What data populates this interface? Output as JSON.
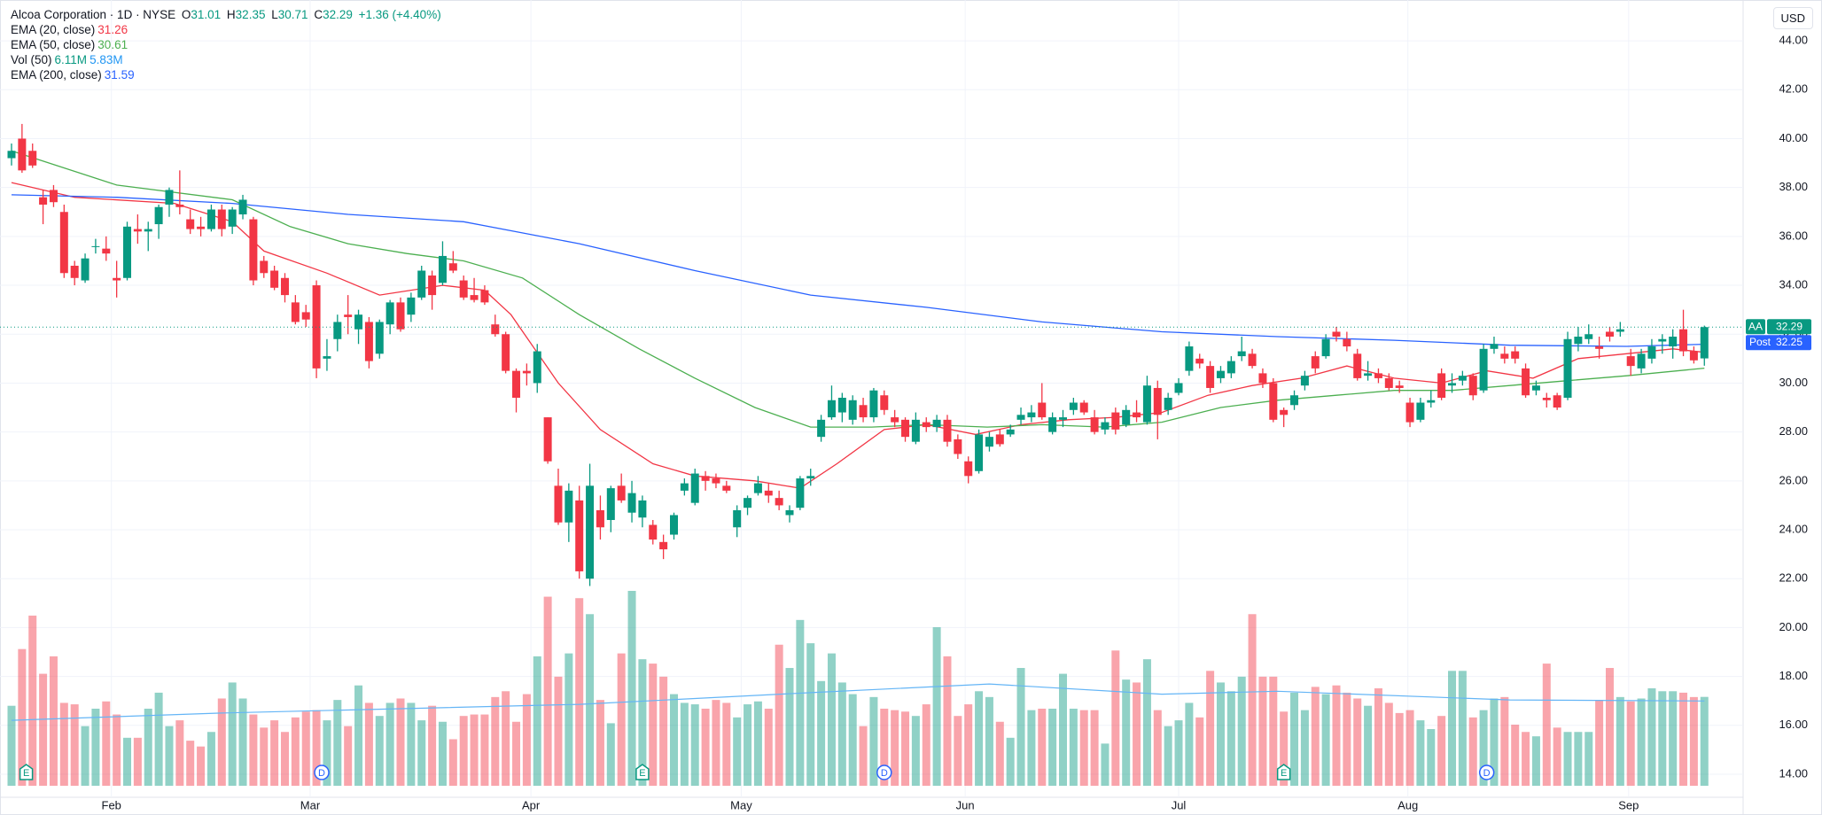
{
  "chart_data": {
    "type": "candlestick",
    "legend": {
      "title": "Alcoa Corporation · 1D · NYSE",
      "o": "O",
      "h": "H",
      "l": "L",
      "c": "C",
      "change": "+1.36 (+4.40%)"
    },
    "currency": "USD",
    "symbol": "AA",
    "post_label": "Post",
    "post_price": 32.25,
    "up_color": "#089981",
    "down_color": "#f23645",
    "ylim": [
      13.42,
      45.38
    ],
    "yticks": [
      {
        "value": 14,
        "label": "14.00"
      },
      {
        "value": 16,
        "label": "16.00"
      },
      {
        "value": 18,
        "label": "18.00"
      },
      {
        "value": 20,
        "label": "20.00"
      },
      {
        "value": 22,
        "label": "22.00"
      },
      {
        "value": 24,
        "label": "24.00"
      },
      {
        "value": 26,
        "label": "26.00"
      },
      {
        "value": 28,
        "label": "28.00"
      },
      {
        "value": 30,
        "label": "30.00"
      },
      {
        "value": 32,
        "label": "32.00"
      },
      {
        "value": 34,
        "label": "34.00"
      },
      {
        "value": 36,
        "label": "36.00"
      },
      {
        "value": 38,
        "label": "38.00"
      },
      {
        "value": 40,
        "label": "40.00"
      },
      {
        "value": 42,
        "label": "42.00"
      },
      {
        "value": 44,
        "label": "44.00"
      }
    ],
    "xlim": [
      -1,
      161
    ],
    "xticks": [
      {
        "value": 9.5,
        "label": "Feb"
      },
      {
        "value": 28.4,
        "label": "Mar"
      },
      {
        "value": 49.4,
        "label": "Apr"
      },
      {
        "value": 69.4,
        "label": "May"
      },
      {
        "value": 90.7,
        "label": "Jun"
      },
      {
        "value": 111,
        "label": "Jul"
      },
      {
        "value": 132.8,
        "label": "Aug"
      },
      {
        "value": 153.8,
        "label": "Sep"
      }
    ],
    "grid": true,
    "candles": [
      [
        39.2,
        39.8,
        38.9,
        39.5
      ],
      [
        40.0,
        40.6,
        38.6,
        38.7
      ],
      [
        39.5,
        39.8,
        38.8,
        38.9
      ],
      [
        37.6,
        37.9,
        36.5,
        37.3
      ],
      [
        37.9,
        38.1,
        37.2,
        37.4
      ],
      [
        37.0,
        37.3,
        34.3,
        34.5
      ],
      [
        34.8,
        35.0,
        34.0,
        34.3
      ],
      [
        34.2,
        35.3,
        34.1,
        35.1
      ],
      [
        35.6,
        35.9,
        35.3,
        35.6
      ],
      [
        35.5,
        36.0,
        35.0,
        35.3
      ],
      [
        34.3,
        35.0,
        33.5,
        34.2
      ],
      [
        34.3,
        36.6,
        34.2,
        36.4
      ],
      [
        36.3,
        36.9,
        35.7,
        36.2
      ],
      [
        36.2,
        36.6,
        35.4,
        36.3
      ],
      [
        36.5,
        37.3,
        35.9,
        37.2
      ],
      [
        37.3,
        38.0,
        36.8,
        37.9
      ],
      [
        37.3,
        38.7,
        36.9,
        37.2
      ],
      [
        36.7,
        37.1,
        36.1,
        36.3
      ],
      [
        36.4,
        36.8,
        36.0,
        36.3
      ],
      [
        36.3,
        37.3,
        36.2,
        37.1
      ],
      [
        37.1,
        37.3,
        36.0,
        36.3
      ],
      [
        36.4,
        37.2,
        36.1,
        37.1
      ],
      [
        36.9,
        37.7,
        36.7,
        37.5
      ],
      [
        36.7,
        36.8,
        34.0,
        34.2
      ],
      [
        35.0,
        35.2,
        34.3,
        34.5
      ],
      [
        34.6,
        34.8,
        33.8,
        33.9
      ],
      [
        34.3,
        34.5,
        33.3,
        33.6
      ],
      [
        33.3,
        33.6,
        32.4,
        32.5
      ],
      [
        32.9,
        33.2,
        32.3,
        32.6
      ],
      [
        34.0,
        34.2,
        30.2,
        30.6
      ],
      [
        31.0,
        31.8,
        30.5,
        31.1
      ],
      [
        31.8,
        32.8,
        31.3,
        32.5
      ],
      [
        32.8,
        33.6,
        32.0,
        32.7
      ],
      [
        32.2,
        33.0,
        31.6,
        32.8
      ],
      [
        32.5,
        32.7,
        30.6,
        30.9
      ],
      [
        31.2,
        32.6,
        31.0,
        32.5
      ],
      [
        32.4,
        33.4,
        32.0,
        33.3
      ],
      [
        33.3,
        33.5,
        32.1,
        32.2
      ],
      [
        32.8,
        33.7,
        32.5,
        33.5
      ],
      [
        33.5,
        34.8,
        33.4,
        34.6
      ],
      [
        34.4,
        34.6,
        33.0,
        33.6
      ],
      [
        34.1,
        35.8,
        34.0,
        35.2
      ],
      [
        34.9,
        35.4,
        34.5,
        34.6
      ],
      [
        34.2,
        34.4,
        33.4,
        33.5
      ],
      [
        33.6,
        34.3,
        33.3,
        33.4
      ],
      [
        33.8,
        34.0,
        33.2,
        33.3
      ],
      [
        32.4,
        32.8,
        31.9,
        32.0
      ],
      [
        32.0,
        32.1,
        30.4,
        30.5
      ],
      [
        30.5,
        30.6,
        28.8,
        29.4
      ],
      [
        30.5,
        30.8,
        29.9,
        30.4
      ],
      [
        30.0,
        31.6,
        29.6,
        31.3
      ],
      [
        28.6,
        28.6,
        26.7,
        26.8
      ],
      [
        25.8,
        26.5,
        24.2,
        24.3
      ],
      [
        24.3,
        25.9,
        23.5,
        25.6
      ],
      [
        25.2,
        25.8,
        22.0,
        22.3
      ],
      [
        22.0,
        26.7,
        21.7,
        25.8
      ],
      [
        24.8,
        25.4,
        23.6,
        24.1
      ],
      [
        24.4,
        25.8,
        23.9,
        25.7
      ],
      [
        25.8,
        26.3,
        25.1,
        25.2
      ],
      [
        24.7,
        26.0,
        24.3,
        25.5
      ],
      [
        24.5,
        25.4,
        24.1,
        25.2
      ],
      [
        24.2,
        24.4,
        23.4,
        23.6
      ],
      [
        23.5,
        23.8,
        22.8,
        23.2
      ],
      [
        23.8,
        24.7,
        23.6,
        24.6
      ],
      [
        25.6,
        26.1,
        25.4,
        25.9
      ],
      [
        25.1,
        26.5,
        25.0,
        26.3
      ],
      [
        26.2,
        26.4,
        25.6,
        26.0
      ],
      [
        26.1,
        26.3,
        25.7,
        25.9
      ],
      [
        25.8,
        26.0,
        25.5,
        25.6
      ],
      [
        24.1,
        25.0,
        23.7,
        24.8
      ],
      [
        24.9,
        25.4,
        24.6,
        25.3
      ],
      [
        25.5,
        26.2,
        25.4,
        25.9
      ],
      [
        25.6,
        25.9,
        25.1,
        25.4
      ],
      [
        25.3,
        25.6,
        24.8,
        25.0
      ],
      [
        24.6,
        25.0,
        24.3,
        24.8
      ],
      [
        24.9,
        26.2,
        24.8,
        26.1
      ],
      [
        26.1,
        26.5,
        25.8,
        26.2
      ],
      [
        27.8,
        28.7,
        27.6,
        28.5
      ],
      [
        28.6,
        29.9,
        28.5,
        29.3
      ],
      [
        28.8,
        29.6,
        28.4,
        29.4
      ],
      [
        28.5,
        29.5,
        28.3,
        29.3
      ],
      [
        29.1,
        29.4,
        28.4,
        28.6
      ],
      [
        28.6,
        29.8,
        28.4,
        29.7
      ],
      [
        29.5,
        29.7,
        28.7,
        28.9
      ],
      [
        28.6,
        28.9,
        28.2,
        28.4
      ],
      [
        28.5,
        28.6,
        27.6,
        27.8
      ],
      [
        27.6,
        28.8,
        27.5,
        28.5
      ],
      [
        28.4,
        28.6,
        28.0,
        28.2
      ],
      [
        28.2,
        28.7,
        28.0,
        28.5
      ],
      [
        28.5,
        28.7,
        27.4,
        27.6
      ],
      [
        27.7,
        27.9,
        26.9,
        27.1
      ],
      [
        26.8,
        27.0,
        25.9,
        26.2
      ],
      [
        26.4,
        28.1,
        26.3,
        27.9
      ],
      [
        27.4,
        28.0,
        27.2,
        27.8
      ],
      [
        27.9,
        28.1,
        27.4,
        27.5
      ],
      [
        27.9,
        28.3,
        27.8,
        28.1
      ],
      [
        28.5,
        29.0,
        28.3,
        28.7
      ],
      [
        28.6,
        29.1,
        28.4,
        28.8
      ],
      [
        29.2,
        30.0,
        28.5,
        28.6
      ],
      [
        28.0,
        28.8,
        27.9,
        28.6
      ],
      [
        28.5,
        28.9,
        28.2,
        28.6
      ],
      [
        28.9,
        29.4,
        28.7,
        29.2
      ],
      [
        29.2,
        29.3,
        28.7,
        28.8
      ],
      [
        28.6,
        28.9,
        27.9,
        28.0
      ],
      [
        28.1,
        28.6,
        27.9,
        28.4
      ],
      [
        28.8,
        29.0,
        27.9,
        28.1
      ],
      [
        28.3,
        29.1,
        28.2,
        28.9
      ],
      [
        28.8,
        29.3,
        28.4,
        28.6
      ],
      [
        28.4,
        30.3,
        28.3,
        29.9
      ],
      [
        29.8,
        30.1,
        27.7,
        28.7
      ],
      [
        28.9,
        29.6,
        28.7,
        29.4
      ],
      [
        29.6,
        30.2,
        29.5,
        30.0
      ],
      [
        30.5,
        31.7,
        30.3,
        31.5
      ],
      [
        31.0,
        31.2,
        30.6,
        30.8
      ],
      [
        30.7,
        30.9,
        29.6,
        29.8
      ],
      [
        30.2,
        30.7,
        30.0,
        30.5
      ],
      [
        30.4,
        31.1,
        30.2,
        30.9
      ],
      [
        31.1,
        31.9,
        30.9,
        31.3
      ],
      [
        31.2,
        31.4,
        30.6,
        30.7
      ],
      [
        30.4,
        30.6,
        29.8,
        30.0
      ],
      [
        30.0,
        30.2,
        28.4,
        28.5
      ],
      [
        28.9,
        29.0,
        28.2,
        28.7
      ],
      [
        29.1,
        29.7,
        28.9,
        29.5
      ],
      [
        29.9,
        30.5,
        29.7,
        30.3
      ],
      [
        31.1,
        31.3,
        30.4,
        30.6
      ],
      [
        31.1,
        32.0,
        31.0,
        31.8
      ],
      [
        32.1,
        32.3,
        31.7,
        31.9
      ],
      [
        31.8,
        32.1,
        31.3,
        31.5
      ],
      [
        31.2,
        31.4,
        30.1,
        30.2
      ],
      [
        30.3,
        30.9,
        30.1,
        30.4
      ],
      [
        30.4,
        30.6,
        30.0,
        30.2
      ],
      [
        30.2,
        30.4,
        29.7,
        29.8
      ],
      [
        29.9,
        30.1,
        29.6,
        29.8
      ],
      [
        29.2,
        29.4,
        28.2,
        28.4
      ],
      [
        28.5,
        29.4,
        28.4,
        29.2
      ],
      [
        29.2,
        29.7,
        29.0,
        29.3
      ],
      [
        30.4,
        30.6,
        29.3,
        29.4
      ],
      [
        29.9,
        30.4,
        29.6,
        30.0
      ],
      [
        30.1,
        30.5,
        29.9,
        30.3
      ],
      [
        30.3,
        30.4,
        29.3,
        29.5
      ],
      [
        29.7,
        31.6,
        29.6,
        31.4
      ],
      [
        31.4,
        31.9,
        31.2,
        31.6
      ],
      [
        31.2,
        31.5,
        30.8,
        31.0
      ],
      [
        31.3,
        31.5,
        30.8,
        31.0
      ],
      [
        30.6,
        30.8,
        29.4,
        29.5
      ],
      [
        29.7,
        30.1,
        29.5,
        29.9
      ],
      [
        29.4,
        29.6,
        29.0,
        29.3
      ],
      [
        29.5,
        29.6,
        28.9,
        29.0
      ],
      [
        29.4,
        32.1,
        29.3,
        31.8
      ],
      [
        31.6,
        32.3,
        31.3,
        31.9
      ],
      [
        31.8,
        32.4,
        31.6,
        32.0
      ],
      [
        31.5,
        31.9,
        31.0,
        31.4
      ],
      [
        32.1,
        32.3,
        31.7,
        31.9
      ],
      [
        32.1,
        32.5,
        31.9,
        32.2
      ],
      [
        31.1,
        31.4,
        30.3,
        30.7
      ],
      [
        30.6,
        31.4,
        30.4,
        31.2
      ],
      [
        31.0,
        31.8,
        30.8,
        31.5
      ],
      [
        31.7,
        32.0,
        31.2,
        31.8
      ],
      [
        31.5,
        32.2,
        31.0,
        31.9
      ],
      [
        32.2,
        33.0,
        31.1,
        31.3
      ],
      [
        31.3,
        31.5,
        30.8,
        30.93
      ],
      [
        31.01,
        32.35,
        30.71,
        32.29
      ]
    ],
    "volume": {
      "name": "Vol (50)",
      "legend_labels": [
        "6.11M",
        "5.83M"
      ],
      "ma_color": "#64b5f6",
      "values": [
        5.5,
        9.4,
        11.7,
        7.7,
        8.9,
        5.7,
        5.6,
        4.1,
        5.3,
        5.8,
        4.9,
        3.3,
        3.3,
        5.3,
        6.4,
        4.1,
        4.5,
        3.1,
        2.7,
        3.7,
        6,
        7.1,
        6,
        4.9,
        4,
        4.5,
        3.7,
        4.7,
        5.1,
        5.2,
        4.5,
        5.9,
        4.1,
        6.9,
        5.7,
        4.8,
        5.7,
        6,
        5.7,
        4.5,
        5.5,
        4.4,
        3.2,
        4.8,
        4.9,
        4.9,
        6.1,
        6.5,
        4.4,
        6.3,
        8.9,
        13,
        7.5,
        9.1,
        12.9,
        11.8,
        5.9,
        4.3,
        9.1,
        13.4,
        8.7,
        8.4,
        7.5,
        6.3,
        5.7,
        5.6,
        5.3,
        5.9,
        5.7,
        4.7,
        5.6,
        5.8,
        5.3,
        9.7,
        8.1,
        11.4,
        9.8,
        7.2,
        9.1,
        7.1,
        6.3,
        4.1,
        6.1,
        5.3,
        5.2,
        5.1,
        4.8,
        5.6,
        10.9,
        8.9,
        4.8,
        5.6,
        6.5,
        6.1,
        4.4,
        3.3,
        8.1,
        5.2,
        5.3,
        5.3,
        7.7,
        5.3,
        5.2,
        5.2,
        2.9,
        9.3,
        7.3,
        7.1,
        8.7,
        5.2,
        4.1,
        4.5,
        5.7,
        4.7,
        7.9,
        7.1,
        6.5,
        7.5,
        11.8,
        7.5,
        7.5,
        5.1,
        6.4,
        5.2,
        6.8,
        6.3,
        6.9,
        6.4,
        6,
        5.5,
        6.7,
        5.7,
        5,
        5.2,
        4.5,
        3.9,
        4.8,
        7.9,
        7.9,
        4.7,
        5.2,
        6,
        6.1,
        4.2,
        3.7,
        3.4,
        8.4,
        4,
        3.7,
        3.7,
        3.7,
        5.9,
        8.1,
        6.1,
        5.8,
        6,
        6.7,
        6.5,
        6.5,
        6.4,
        6.1,
        6.11
      ],
      "ma_x": [
        0,
        20,
        54,
        76,
        93,
        109.4,
        120.4,
        142.5,
        161
      ],
      "ma_values": [
        4.5,
        5.0,
        5.6,
        6.4,
        7.0,
        6.3,
        6.5,
        5.9,
        5.83
      ]
    },
    "series": [
      {
        "name": "EMA (20, close)",
        "color": "#f23645",
        "x": [
          0,
          6,
          15.5,
          21,
          24,
          30,
          35,
          41,
          45,
          47.5,
          52,
          56,
          61,
          65,
          70.7,
          75,
          78.5,
          83,
          87,
          91.7,
          96,
          100.5,
          105,
          109.4,
          113.8,
          118,
          122.7,
          127,
          131.5,
          136,
          140.3,
          144.7,
          149,
          153.6,
          158,
          161
        ],
        "values": [
          38.2,
          37.6,
          37.35,
          36.6,
          35.4,
          34.5,
          33.6,
          34,
          33.8,
          32.8,
          30,
          28.1,
          26.7,
          26.2,
          26,
          25.7,
          26.7,
          28.1,
          28.3,
          27.9,
          28.3,
          28.5,
          28.6,
          28.8,
          29.5,
          29.9,
          30.2,
          30.7,
          30.2,
          30,
          30.5,
          30.2,
          31,
          31.2,
          31.4,
          31.26
        ]
      },
      {
        "name": "EMA (50, close)",
        "color": "#4caf50",
        "x": [
          0,
          10,
          21,
          26.5,
          32,
          37.6,
          43,
          48.6,
          54,
          59.7,
          65,
          70.7,
          76,
          81.8,
          87,
          92.8,
          98,
          103.9,
          109.4,
          115,
          120.4,
          126,
          131.5,
          137,
          142.5,
          148,
          153.6,
          161
        ],
        "values": [
          39.5,
          38.1,
          37.5,
          36.4,
          35.7,
          35.3,
          35,
          34.3,
          32.8,
          31.4,
          30.2,
          29,
          28.2,
          28.2,
          28.3,
          28.2,
          28.3,
          28.2,
          28.4,
          29,
          29.3,
          29.5,
          29.7,
          29.7,
          29.9,
          30.1,
          30.3,
          30.61
        ]
      },
      {
        "name": "EMA (200, close)",
        "color": "#2962ff",
        "x": [
          0,
          10,
          21,
          32,
          43,
          54,
          65,
          76,
          87,
          98,
          109.4,
          120.4,
          131.5,
          142.5,
          153.6,
          161
        ],
        "values": [
          37.7,
          37.6,
          37.35,
          36.9,
          36.6,
          35.7,
          34.6,
          33.6,
          33.1,
          32.5,
          32.1,
          31.9,
          31.75,
          31.55,
          31.5,
          31.59
        ]
      }
    ],
    "events": [
      {
        "label": "E",
        "x": 1.4,
        "color": "#089981"
      },
      {
        "label": "D",
        "x": 29.5,
        "color": "#2962ff"
      },
      {
        "label": "E",
        "x": 60,
        "color": "#089981"
      },
      {
        "label": "D",
        "x": 83,
        "color": "#2962ff"
      },
      {
        "label": "E",
        "x": 121,
        "color": "#089981"
      },
      {
        "label": "D",
        "x": 140.3,
        "color": "#2962ff"
      }
    ]
  }
}
